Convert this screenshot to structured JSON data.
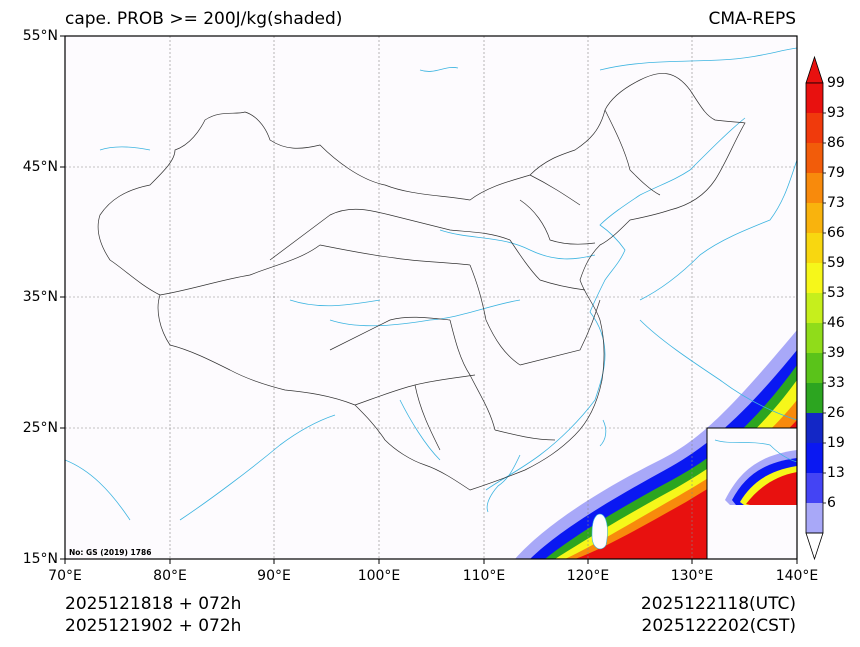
{
  "title_left": "cape. PROB >= 200J/kg(shaded)",
  "title_right": "CMA-REPS",
  "lat_labels": [
    "55°N",
    "45°N",
    "35°N",
    "25°N",
    "15°N"
  ],
  "lon_labels": [
    "70°E",
    "80°E",
    "90°E",
    "100°E",
    "110°E",
    "120°E",
    "130°E",
    "140°E"
  ],
  "colorbar": {
    "labels": [
      "99",
      "93",
      "86",
      "79",
      "73",
      "66",
      "59",
      "53",
      "46",
      "39",
      "33",
      "26",
      "19",
      "13",
      "6"
    ],
    "colors": [
      "#e8110f",
      "#f03a0c",
      "#f25c0a",
      "#f88a0c",
      "#f9b30d",
      "#f8d710",
      "#f6f71a",
      "#c6ef1c",
      "#90dc1a",
      "#5ac31a",
      "#2ca520",
      "#1327c6",
      "#0a18f2",
      "#4444f4",
      "#a8a8f8"
    ],
    "over_color": "#e8110f"
  },
  "valid_time_utc": "2025122118(UTC)",
  "valid_time_cst": "2025122202(CST)",
  "init_utc": "2025121818  +  072h",
  "init_cst": "2025121902  +  072h",
  "watermark": "No: GS (2019) 1786",
  "colors": {
    "coast": "#3cb4e0",
    "border": "#333333",
    "grid": "#888888"
  }
}
